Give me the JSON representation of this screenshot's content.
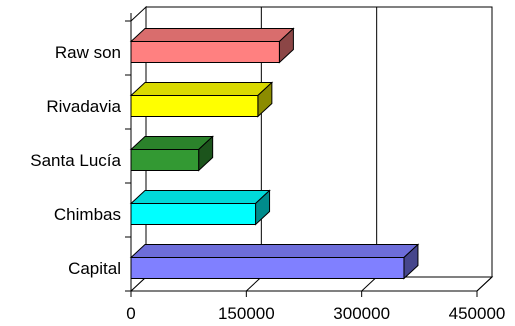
{
  "chart_data": {
    "type": "bar",
    "orientation": "horizontal",
    "style": "3d",
    "title": "",
    "xlabel": "",
    "ylabel": "",
    "categories": [
      "Capital",
      "Chimbas",
      "Santa Lucía",
      "Rivadavia",
      "Raw son"
    ],
    "values": [
      355000,
      162000,
      88000,
      165000,
      193000
    ],
    "colors": [
      "#8080ff",
      "#00ffff",
      "#339933",
      "#ffff00",
      "#ff8080"
    ],
    "xlim": [
      0,
      450000
    ],
    "x_ticks": [
      0,
      150000,
      300000,
      450000
    ],
    "x_tick_labels": [
      "0",
      "150000",
      "300000",
      "450000"
    ],
    "grid": "vertical",
    "legend": "none"
  }
}
